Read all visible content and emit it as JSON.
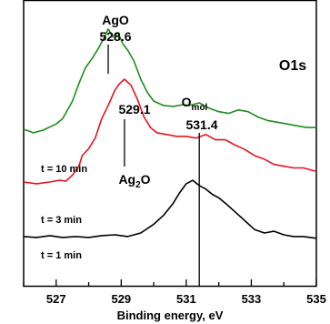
{
  "chart_data": {
    "type": "line",
    "xlabel": "Binding energy, eV",
    "ylabel": "",
    "xlim": [
      526,
      535
    ],
    "xticks": [
      "527",
      "529",
      "531",
      "533",
      "535"
    ],
    "panel_label": "O1s",
    "grid": false,
    "series": [
      {
        "name": "t = 10 min",
        "color": "#1e8c1e",
        "x": [
          526.0,
          526.3,
          526.6,
          527.0,
          527.2,
          527.5,
          527.7,
          527.9,
          528.1,
          528.3,
          528.5,
          528.6,
          528.75,
          528.9,
          529.05,
          529.2,
          529.4,
          529.6,
          529.8,
          530.0,
          530.3,
          530.6,
          530.9,
          531.1,
          531.4,
          531.7,
          532.0,
          532.3,
          532.6,
          532.9,
          533.2,
          533.5,
          533.8,
          534.1,
          534.4,
          534.7,
          535.0
        ],
        "y": [
          1.78,
          1.74,
          1.77,
          1.84,
          1.9,
          2.1,
          2.3,
          2.48,
          2.58,
          2.7,
          2.84,
          2.92,
          2.83,
          2.88,
          2.75,
          2.68,
          2.55,
          2.35,
          2.2,
          2.1,
          2.05,
          2.04,
          2.06,
          2.05,
          2.08,
          2.02,
          1.98,
          1.96,
          2.0,
          1.98,
          1.92,
          1.88,
          1.86,
          1.84,
          1.82,
          1.8,
          1.8
        ]
      },
      {
        "name": "t = 3 min",
        "color": "#e8141e",
        "x": [
          526.0,
          526.4,
          526.8,
          527.1,
          527.3,
          527.5,
          527.7,
          527.8,
          528.0,
          528.2,
          528.4,
          528.6,
          528.8,
          528.95,
          529.1,
          529.3,
          529.5,
          529.7,
          529.9,
          530.1,
          530.4,
          530.7,
          531.0,
          531.3,
          531.6,
          531.9,
          532.2,
          532.5,
          532.8,
          533.1,
          533.4,
          533.7,
          534.0,
          534.3,
          534.6,
          535.0
        ],
        "y": [
          1.18,
          1.16,
          1.18,
          1.2,
          1.19,
          1.26,
          1.36,
          1.48,
          1.56,
          1.68,
          1.9,
          2.05,
          2.22,
          2.3,
          2.35,
          2.28,
          2.12,
          1.92,
          1.8,
          1.74,
          1.72,
          1.7,
          1.7,
          1.68,
          1.72,
          1.66,
          1.66,
          1.6,
          1.55,
          1.48,
          1.44,
          1.38,
          1.36,
          1.34,
          1.34,
          1.3
        ]
      },
      {
        "name": "t = 1 min",
        "color": "#000000",
        "x": [
          526.0,
          526.4,
          526.8,
          527.2,
          527.6,
          528.0,
          528.4,
          528.8,
          529.2,
          529.6,
          530.0,
          530.3,
          530.6,
          530.8,
          531.0,
          531.2,
          531.4,
          531.6,
          531.8,
          532.0,
          532.2,
          532.5,
          532.8,
          533.1,
          533.4,
          533.7,
          534.0,
          534.3,
          534.6,
          535.0
        ],
        "y": [
          0.56,
          0.55,
          0.57,
          0.55,
          0.56,
          0.55,
          0.57,
          0.58,
          0.56,
          0.6,
          0.7,
          0.8,
          0.94,
          1.06,
          1.16,
          1.2,
          1.14,
          1.1,
          1.04,
          1.0,
          0.94,
          0.84,
          0.74,
          0.64,
          0.6,
          0.62,
          0.58,
          0.56,
          0.56,
          0.54
        ]
      }
    ],
    "annotations": [
      {
        "label": "AgO",
        "value": "528.6",
        "x": 528.6
      },
      {
        "label": "Ag2O",
        "value": "529.1",
        "x": 529.1
      },
      {
        "label": "Omol",
        "value": "531.4",
        "x": 531.4
      }
    ]
  },
  "labels": {
    "ago_name": "AgO",
    "ago_value": "528.6",
    "ag2o_value": "529.1",
    "ag2o_base": "Ag",
    "ag2o_sub": "2",
    "ag2o_tail": "O",
    "omol_base": "O",
    "omol_sub": "mol",
    "omol_value": "531.4",
    "panel": "O1s",
    "t10": "t = 10 min",
    "t3": "t = 3 min",
    "t1": "t = 1 min",
    "xlabel": "Binding energy, eV",
    "ticks": [
      "527",
      "529",
      "531",
      "533",
      "535"
    ]
  }
}
